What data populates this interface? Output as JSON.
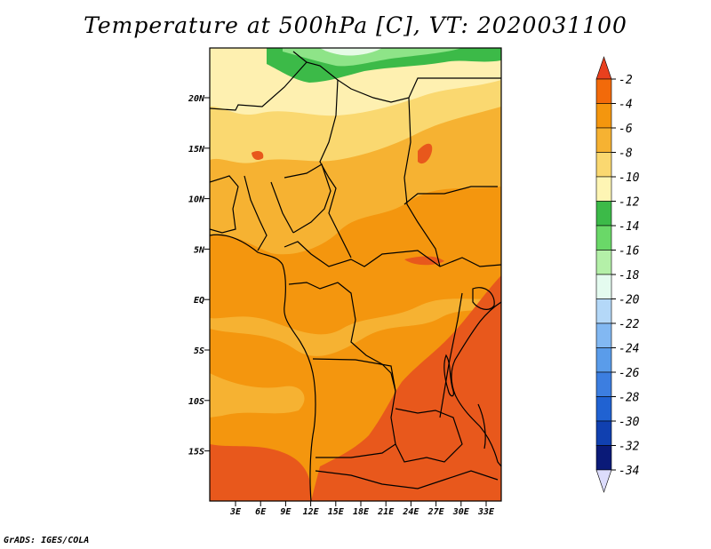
{
  "title": "Temperature at 500hPa [C], VT: 2020031100",
  "footer": "GrADS: IGES/COLA",
  "lon_ticks": [
    "3E",
    "6E",
    "9E",
    "12E",
    "15E",
    "18E",
    "21E",
    "24E",
    "27E",
    "30E",
    "33E"
  ],
  "lat_ticks": [
    "20N",
    "15N",
    "10N",
    "5N",
    "EQ",
    "5S",
    "10S",
    "15S"
  ],
  "colorbar": {
    "labels": [
      "-2",
      "-4",
      "-6",
      "-8",
      "-10",
      "-12",
      "-14",
      "-16",
      "-18",
      "-20",
      "-22",
      "-24",
      "-26",
      "-28",
      "-30",
      "-32",
      "-34"
    ],
    "colors": [
      "#e8401e",
      "#f26a0a",
      "#f4960e",
      "#f6b232",
      "#fad870",
      "#fef5b4",
      "#3cba48",
      "#6ad868",
      "#b4f0a8",
      "#e4fbef",
      "#b4d8f8",
      "#82b8f2",
      "#5a9cea",
      "#3c7ee0",
      "#2062d2",
      "#1040b0",
      "#0a1a78",
      "#dcdcfc"
    ]
  },
  "map_colors": {
    "warm": "#e8581c",
    "orange": "#f4960e",
    "mid": "#f6b232",
    "light": "#fad870",
    "pale": "#fef0b0",
    "green": "#3cba48",
    "lightgreen": "#8ee488",
    "palegreen": "#e6fbe6"
  }
}
